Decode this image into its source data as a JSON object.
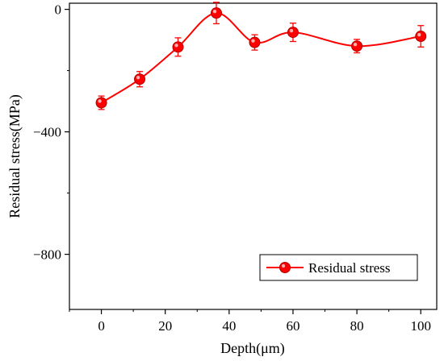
{
  "chart_data": {
    "type": "line",
    "title": "",
    "xlabel": "Depth(μm)",
    "ylabel": "Residual stress(MPa)",
    "xlim": [
      -10,
      105
    ],
    "ylim": [
      -980,
      20
    ],
    "x_ticks": [
      0,
      20,
      40,
      60,
      80,
      100
    ],
    "x_tick_labels": [
      "0",
      "20",
      "40",
      "60",
      "80",
      "100"
    ],
    "y_ticks": [
      0,
      -400,
      -800
    ],
    "y_tick_labels": [
      "0",
      "−400",
      "−800"
    ],
    "grid": false,
    "legend_position": "bottom-right",
    "series": [
      {
        "name": "Residual stress",
        "color": "#ff0000",
        "x": [
          0,
          12,
          24,
          36,
          48,
          60,
          80,
          100
        ],
        "y": [
          -305,
          -228,
          -123,
          -12,
          -108,
          -75,
          -120,
          -88
        ],
        "error": [
          22,
          25,
          30,
          35,
          25,
          30,
          22,
          35
        ]
      }
    ]
  }
}
